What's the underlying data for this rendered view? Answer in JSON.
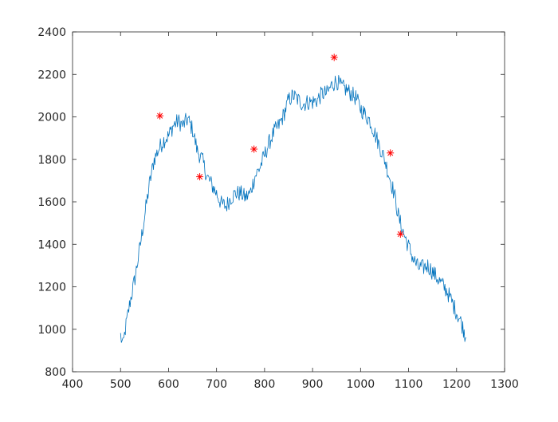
{
  "chart_data": {
    "type": "line",
    "title": "",
    "xlabel": "",
    "ylabel": "",
    "xlim": [
      400,
      1300
    ],
    "ylim": [
      800,
      2400
    ],
    "xticks": [
      400,
      500,
      600,
      700,
      800,
      900,
      1000,
      1100,
      1200,
      1300
    ],
    "yticks": [
      800,
      1000,
      1200,
      1400,
      1600,
      1800,
      2000,
      2200,
      2400
    ],
    "xtick_labels": [
      "400",
      "500",
      "600",
      "700",
      "800",
      "900",
      "1000",
      "1100",
      "1200",
      "1300"
    ],
    "ytick_labels": [
      "800",
      "1000",
      "1200",
      "1400",
      "1600",
      "1800",
      "2000",
      "2200",
      "2400"
    ],
    "grid": false,
    "legend": "none",
    "series": [
      {
        "style": "line",
        "color": "#0072BD",
        "x": [
          500,
          505,
          510,
          520,
          530,
          540,
          550,
          560,
          570,
          580,
          590,
          600,
          610,
          620,
          630,
          640,
          650,
          660,
          670,
          680,
          690,
          700,
          710,
          720,
          730,
          740,
          750,
          760,
          770,
          780,
          790,
          800,
          810,
          820,
          830,
          840,
          850,
          860,
          870,
          880,
          890,
          900,
          910,
          920,
          930,
          940,
          950,
          960,
          970,
          980,
          990,
          1000,
          1010,
          1020,
          1030,
          1040,
          1050,
          1060,
          1070,
          1080,
          1090,
          1100,
          1110,
          1120,
          1130,
          1140,
          1150,
          1160,
          1170,
          1180,
          1190,
          1200,
          1210,
          1220
        ],
        "y": [
          970,
          920,
          1000,
          1130,
          1240,
          1380,
          1530,
          1680,
          1800,
          1850,
          1890,
          1910,
          1960,
          1980,
          1960,
          1990,
          1940,
          1840,
          1800,
          1720,
          1680,
          1640,
          1590,
          1580,
          1620,
          1640,
          1640,
          1620,
          1640,
          1720,
          1760,
          1820,
          1880,
          1930,
          1960,
          2010,
          2080,
          2100,
          2080,
          2060,
          2070,
          2070,
          2080,
          2110,
          2110,
          2150,
          2170,
          2140,
          2130,
          2110,
          2090,
          2040,
          2010,
          1980,
          1920,
          1860,
          1800,
          1720,
          1640,
          1520,
          1450,
          1390,
          1330,
          1290,
          1290,
          1300,
          1270,
          1240,
          1210,
          1180,
          1130,
          1080,
          1030,
          960
        ]
      },
      {
        "style": "markers",
        "marker": "*",
        "color": "#FF0000",
        "x": [
          582,
          665,
          778,
          945,
          1062,
          1083
        ],
        "y": [
          2005,
          1718,
          1848,
          2280,
          1830,
          1448
        ]
      }
    ]
  }
}
